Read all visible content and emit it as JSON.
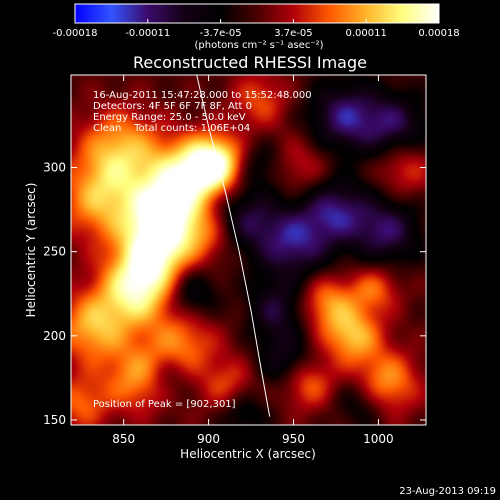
{
  "colorbar": {
    "tick_labels": [
      "-0.00018",
      "-0.00011",
      "-3.7e-05",
      "3.7e-05",
      "0.00011",
      "0.00018"
    ],
    "units_label": "(photons cm⁻² s⁻¹ asec⁻²)",
    "colormap": [
      "#0000ff",
      "#3355ff",
      "#3a0a6a",
      "#140014",
      "#000000",
      "#4a0000",
      "#b0000a",
      "#ff5a00",
      "#ffb52a",
      "#ffff80",
      "#ffffff"
    ]
  },
  "chart_data": {
    "type": "heatmap",
    "title": "Reconstructed RHESSI Image",
    "xlabel": "Heliocentric X (arcsec)",
    "ylabel": "Heliocentric Y (arcsec)",
    "xlim": [
      819,
      1028
    ],
    "ylim": [
      147,
      355
    ],
    "x_ticks": [
      850,
      900,
      950,
      1000
    ],
    "y_ticks": [
      150,
      200,
      250,
      300
    ],
    "info_lines": [
      "16-Aug-2011 15:47:28.000 to 15:52:48.000",
      "Detectors: 4F 5F 6F 7F 8F, Att 0",
      "Energy Range: 25.0 - 50.0 keV",
      "Clean    Total counts: 1.06E+04"
    ],
    "peak_label": "Position of Peak = [902,301]",
    "peak_position": [
      902,
      301
    ],
    "limb_curve": [
      [
        893,
        355
      ],
      [
        901,
        320
      ],
      [
        910,
        285
      ],
      [
        918,
        250
      ],
      [
        925,
        215
      ],
      [
        931,
        180
      ],
      [
        936,
        152
      ]
    ],
    "emission_sources": [
      {
        "x": 903,
        "y": 302,
        "amp": 1.0,
        "sigma": 12
      },
      {
        "x": 884,
        "y": 295,
        "amp": 0.6,
        "sigma": 15
      },
      {
        "x": 874,
        "y": 272,
        "amp": 0.88,
        "sigma": 15
      },
      {
        "x": 868,
        "y": 250,
        "amp": 0.7,
        "sigma": 14
      },
      {
        "x": 858,
        "y": 228,
        "amp": 0.82,
        "sigma": 15
      },
      {
        "x": 848,
        "y": 310,
        "amp": 0.6,
        "sigma": 17
      },
      {
        "x": 836,
        "y": 280,
        "amp": 0.55,
        "sigma": 17
      },
      {
        "x": 832,
        "y": 205,
        "amp": 0.6,
        "sigma": 15
      },
      {
        "x": 860,
        "y": 175,
        "amp": 0.55,
        "sigma": 14
      },
      {
        "x": 885,
        "y": 196,
        "amp": 0.45,
        "sigma": 14
      },
      {
        "x": 900,
        "y": 260,
        "amp": 0.35,
        "sigma": 12
      },
      {
        "x": 912,
        "y": 170,
        "amp": 0.35,
        "sigma": 12
      },
      {
        "x": 955,
        "y": 300,
        "amp": 0.28,
        "sigma": 13
      },
      {
        "x": 970,
        "y": 220,
        "amp": 0.5,
        "sigma": 12
      },
      {
        "x": 985,
        "y": 200,
        "amp": 0.6,
        "sigma": 12
      },
      {
        "x": 1005,
        "y": 172,
        "amp": 0.55,
        "sigma": 13
      },
      {
        "x": 998,
        "y": 228,
        "amp": 0.4,
        "sigma": 10
      },
      {
        "x": 958,
        "y": 172,
        "amp": 0.45,
        "sigma": 11
      },
      {
        "x": 1015,
        "y": 300,
        "amp": 0.35,
        "sigma": 12
      },
      {
        "x": 930,
        "y": 340,
        "amp": 0.35,
        "sigma": 12
      },
      {
        "x": 825,
        "y": 160,
        "amp": 0.4,
        "sigma": 12
      },
      {
        "x": 920,
        "y": 270,
        "amp": -0.45,
        "sigma": 14
      },
      {
        "x": 950,
        "y": 255,
        "amp": -0.6,
        "sigma": 16
      },
      {
        "x": 980,
        "y": 330,
        "amp": -0.6,
        "sigma": 15
      },
      {
        "x": 1010,
        "y": 325,
        "amp": -0.5,
        "sigma": 14
      },
      {
        "x": 975,
        "y": 275,
        "amp": -0.55,
        "sigma": 14
      },
      {
        "x": 1005,
        "y": 262,
        "amp": -0.55,
        "sigma": 14
      },
      {
        "x": 940,
        "y": 215,
        "amp": -0.45,
        "sigma": 12
      },
      {
        "x": 890,
        "y": 225,
        "amp": -0.4,
        "sigma": 11
      },
      {
        "x": 875,
        "y": 175,
        "amp": -0.3,
        "sigma": 10
      },
      {
        "x": 945,
        "y": 185,
        "amp": -0.4,
        "sigma": 12
      },
      {
        "x": 990,
        "y": 160,
        "amp": -0.3,
        "sigma": 11
      },
      {
        "x": 930,
        "y": 302,
        "amp": -0.3,
        "sigma": 10
      },
      {
        "x": 920,
        "y": 155,
        "amp": -0.35,
        "sigma": 10
      }
    ]
  },
  "footer": {
    "timestamp": "23-Aug-2013 09:19"
  }
}
